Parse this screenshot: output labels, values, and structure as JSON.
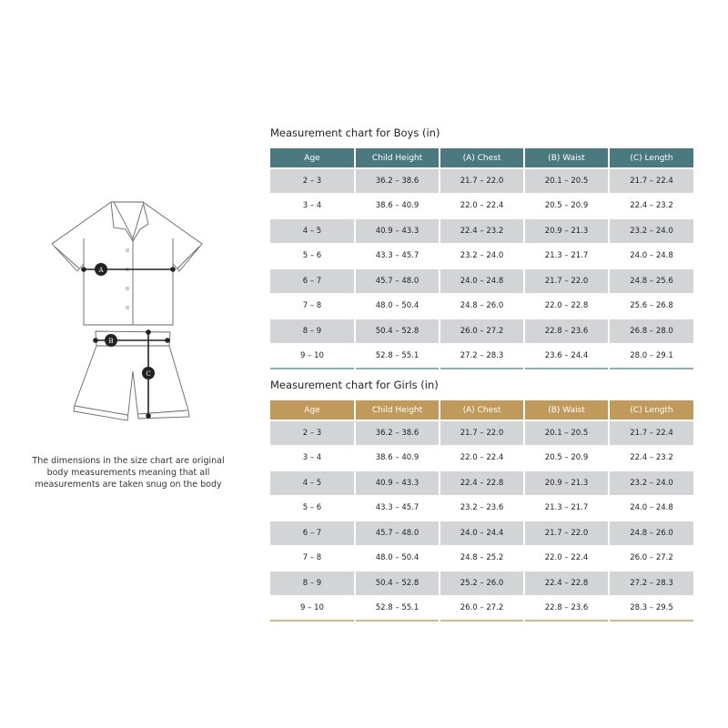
{
  "illustration": {
    "labels": [
      "A",
      "B",
      "C"
    ]
  },
  "note": "The dimensions in the size chart are original body measurements meaning that all measurements are taken snug on the body",
  "colors": {
    "boys_header": "#4a7a80",
    "girls_header": "#c09a5a",
    "stripe": "#d3d4d6"
  },
  "boys": {
    "title": "Measurement chart for Boys (in)",
    "headers": [
      "Age",
      "Child Height",
      "(A) Chest",
      "(B) Waist",
      "(C) Length"
    ],
    "rows": [
      [
        "2 – 3",
        "36.2 – 38.6",
        "21.7 – 22.0",
        "20.1 – 20.5",
        "21.7 – 22.4"
      ],
      [
        "3 – 4",
        "38.6 – 40.9",
        "22.0 – 22.4",
        "20.5 – 20.9",
        "22.4 – 23.2"
      ],
      [
        "4 – 5",
        "40.9 – 43.3",
        "22.4 – 23.2",
        "20.9 – 21.3",
        "23.2 – 24.0"
      ],
      [
        "5 – 6",
        "43.3 – 45.7",
        "23.2 – 24.0",
        "21.3 – 21.7",
        "24.0 – 24.8"
      ],
      [
        "6 – 7",
        "45.7 – 48.0",
        "24.0 – 24.8",
        "21.7 – 22.0",
        "24.8 – 25.6"
      ],
      [
        "7 – 8",
        "48.0 – 50.4",
        "24.8 – 26.0",
        "22.0 – 22.8",
        "25.6 – 26.8"
      ],
      [
        "8 – 9",
        "50.4 – 52.8",
        "26.0 – 27.2",
        "22.8 – 23.6",
        "26.8 – 28.0"
      ],
      [
        "9 – 10",
        "52.8 – 55.1",
        "27.2 – 28.3",
        "23.6 – 24.4",
        "28.0 – 29.1"
      ]
    ]
  },
  "girls": {
    "title": "Measurement chart for Girls (in)",
    "headers": [
      "Age",
      "Child Height",
      "(A) Chest",
      "(B) Waist",
      "(C) Length"
    ],
    "rows": [
      [
        "2 – 3",
        "36.2 – 38.6",
        "21.7 – 22.0",
        "20.1 – 20.5",
        "21.7 – 22.4"
      ],
      [
        "3 – 4",
        "38.6 – 40.9",
        "22.0 – 22.4",
        "20.5 – 20.9",
        "22.4 – 23.2"
      ],
      [
        "4 – 5",
        "40.9 – 43.3",
        "22.4 – 22.8",
        "20.9 – 21.3",
        "23.2 – 24.0"
      ],
      [
        "5 – 6",
        "43.3 – 45.7",
        "23.2 – 23.6",
        "21.3 – 21.7",
        "24.0 – 24.8"
      ],
      [
        "6 – 7",
        "45.7 – 48.0",
        "24.0 – 24.4",
        "21.7 – 22.0",
        "24.8 – 26.0"
      ],
      [
        "7 – 8",
        "48.0 – 50.4",
        "24.8 – 25.2",
        "22.0 – 22.4",
        "26.0 – 27.2"
      ],
      [
        "8 – 9",
        "50.4 – 52.8",
        "25.2 – 26.0",
        "22.4 – 22.8",
        "27.2 – 28.3"
      ],
      [
        "9 – 10",
        "52.8 – 55.1",
        "26.0 – 27.2",
        "22.8 – 23.6",
        "28.3 – 29.5"
      ]
    ]
  }
}
